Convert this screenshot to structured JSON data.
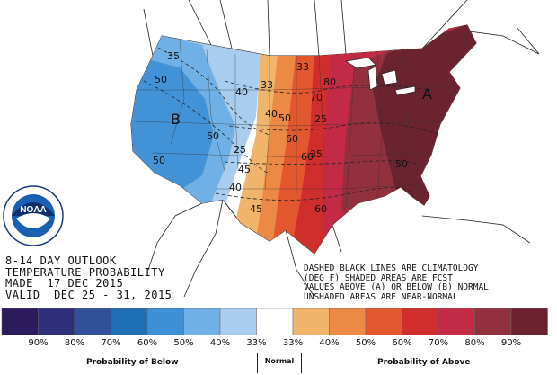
{
  "map": {
    "region_letters": [
      "B",
      "A"
    ],
    "contour_labels": [
      "35",
      "50",
      "40",
      "33",
      "50",
      "40",
      "33",
      "25",
      "50",
      "60",
      "70",
      "80",
      "25",
      "45",
      "60",
      "50",
      "40",
      "45",
      "60",
      "35",
      "50"
    ]
  },
  "title": {
    "line1": "8-14 DAY OUTLOOK",
    "line2": "TEMPERATURE PROBABILITY",
    "line3": "MADE  17 DEC 2015",
    "line4": "VALID  DEC 25 - 31, 2015"
  },
  "notes": {
    "line1": "DASHED BLACK LINES ARE CLIMATOLOGY",
    "line2": "(DEG F) SHADED AREAS ARE FCST",
    "line3": "VALUES ABOVE (A) OR BELOW (B) NORMAL",
    "line4": "UNSHADED AREAS ARE NEAR-NORMAL"
  },
  "logo": {
    "text": "NOAA"
  },
  "legend": {
    "colors": [
      "#2b1a5c",
      "#2e2e7a",
      "#30509a",
      "#1f6fb5",
      "#3d8fd6",
      "#6fb1e6",
      "#a8cdee",
      "#ffffff",
      "#f0b46a",
      "#ec8a45",
      "#e2572e",
      "#cf2e2c",
      "#c22a46",
      "#93303e",
      "#6b2330"
    ],
    "percents": [
      "90%",
      "80%",
      "70%",
      "60%",
      "50%",
      "40%",
      "33%",
      "33%",
      "40%",
      "50%",
      "60%",
      "70%",
      "80%",
      "90%"
    ],
    "below_label": "Probability of Below",
    "normal_label": "Normal",
    "above_label": "Probability of Above"
  }
}
